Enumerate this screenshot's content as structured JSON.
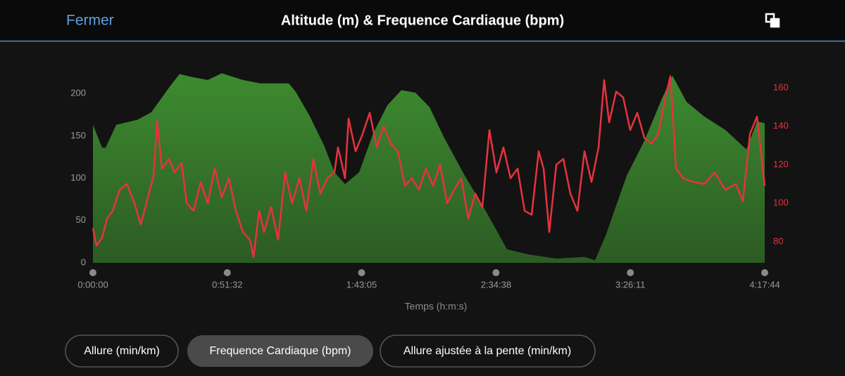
{
  "header": {
    "close": "Fermer",
    "title": "Altitude (m) & Frequence Cardiaque (bpm)"
  },
  "chart_data": {
    "type": "combo",
    "x_label": "Temps (h:m:s)",
    "xlim": [
      0,
      15464
    ],
    "xticks": [
      {
        "value": 0,
        "label": "0:00:00"
      },
      {
        "value": 3092,
        "label": "0:51:32"
      },
      {
        "value": 6185,
        "label": "1:43:05"
      },
      {
        "value": 9278,
        "label": "2:34:38"
      },
      {
        "value": 12371,
        "label": "3:26:11"
      },
      {
        "value": 15464,
        "label": "4:17:44"
      }
    ],
    "ylim": [
      0,
      225
    ],
    "yticks": [
      0,
      50,
      100,
      150,
      200
    ],
    "y2lim": [
      69,
      168
    ],
    "y2ticks": [
      80,
      100,
      120,
      140,
      160
    ],
    "series": [
      {
        "name": "Altitude (m)",
        "type": "area",
        "color": "#3d8b2f",
        "x": [
          0,
          211,
          292,
          535,
          1021,
          1345,
          1751,
          1994,
          2237,
          2642,
          2966,
          3453,
          3858,
          4506,
          4669,
          4993,
          5317,
          5560,
          5803,
          6128,
          6452,
          6776,
          7100,
          7424,
          7748,
          8072,
          8559,
          9045,
          9531,
          10018,
          10666,
          11315,
          11558,
          11801,
          12287,
          12692,
          13098,
          13341,
          13665,
          14070,
          14556,
          15043,
          15286,
          15464
        ],
        "values": [
          163,
          136,
          136,
          163,
          169,
          178,
          207,
          223,
          220,
          216,
          224,
          216,
          212,
          212,
          202,
          173,
          139,
          107,
          93,
          107,
          153,
          186,
          204,
          201,
          184,
          149,
          103,
          61,
          16,
          10,
          5,
          7,
          3,
          32,
          103,
          144,
          194,
          221,
          190,
          173,
          157,
          134,
          167,
          165
        ]
      },
      {
        "name": "Frequence Cardiaque (bpm)",
        "type": "line",
        "axis": "y2",
        "color": "#e8323f",
        "x": [
          0,
          81,
          211,
          324,
          454,
          616,
          778,
          940,
          1102,
          1264,
          1394,
          1475,
          1589,
          1751,
          1880,
          2042,
          2156,
          2318,
          2480,
          2642,
          2804,
          2966,
          3129,
          3291,
          3453,
          3615,
          3696,
          3826,
          3939,
          4101,
          4263,
          4425,
          4587,
          4750,
          4912,
          5074,
          5236,
          5398,
          5560,
          5641,
          5803,
          5884,
          6046,
          6208,
          6371,
          6533,
          6695,
          6857,
          7019,
          7181,
          7343,
          7505,
          7667,
          7829,
          7992,
          8154,
          8316,
          8478,
          8640,
          8802,
          8964,
          9126,
          9288,
          9450,
          9613,
          9775,
          9937,
          10099,
          10261,
          10374,
          10504,
          10666,
          10828,
          10990,
          11152,
          11315,
          11477,
          11639,
          11768,
          11882,
          12044,
          12206,
          12368,
          12530,
          12692,
          12854,
          13016,
          13179,
          13292,
          13422,
          13584,
          13827,
          14070,
          14313,
          14556,
          14799,
          14961,
          15124,
          15286,
          15464
        ],
        "values": [
          87,
          78,
          82,
          92,
          96,
          107,
          110,
          101,
          89,
          103,
          114,
          143,
          118,
          123,
          116,
          121,
          100,
          96,
          111,
          100,
          118,
          103,
          113,
          96,
          85,
          81,
          72,
          96,
          85,
          98,
          81,
          116,
          100,
          113,
          96,
          123,
          105,
          113,
          116,
          129,
          113,
          144,
          127,
          136,
          147,
          129,
          140,
          131,
          127,
          109,
          113,
          107,
          118,
          109,
          120,
          100,
          107,
          113,
          92,
          105,
          98,
          138,
          116,
          129,
          113,
          118,
          96,
          94,
          127,
          118,
          85,
          120,
          123,
          105,
          96,
          127,
          111,
          129,
          164,
          142,
          158,
          155,
          138,
          147,
          134,
          131,
          136,
          155,
          166,
          118,
          113,
          111,
          110,
          116,
          107,
          110,
          101,
          136,
          145,
          109
        ]
      }
    ]
  },
  "tabs": [
    "Allure (min/km)",
    "Frequence Cardiaque (bpm)",
    "Allure ajustée à la pente (min/km)"
  ]
}
